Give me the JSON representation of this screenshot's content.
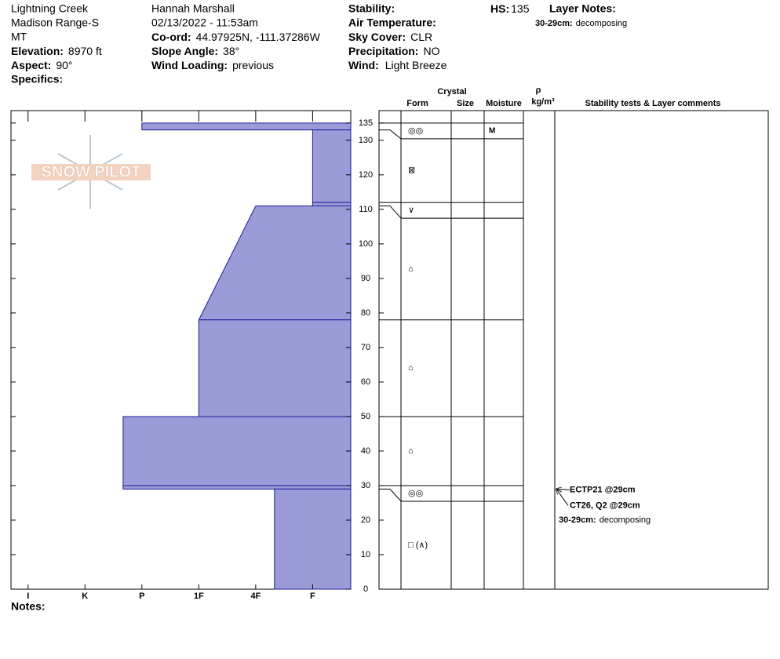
{
  "header": {
    "location": [
      "Lightning Creek",
      "Madison Range-S",
      "MT"
    ],
    "elevation": {
      "label": "Elevation:",
      "value": "8970 ft"
    },
    "aspect": {
      "label": "Aspect:",
      "value": "90°"
    },
    "specifics": {
      "label": "Specifics:"
    },
    "observer": "Hannah Marshall",
    "datetime": "02/13/2022 - 11:53am",
    "coord": {
      "label": "Co-ord:",
      "value": "44.97925N, -111.37286W"
    },
    "slope": {
      "label": "Slope Angle:",
      "value": "38°"
    },
    "wind_loading": {
      "label": "Wind Loading:",
      "value": "previous"
    },
    "stability": {
      "label": "Stability:"
    },
    "air_temp": {
      "label": "Air Temperature:"
    },
    "sky": {
      "label": "Sky Cover:",
      "value": "CLR"
    },
    "precip": {
      "label": "Precipitation:",
      "value": "NO"
    },
    "wind": {
      "label": "Wind:",
      "value": "Light Breeze"
    },
    "hs": {
      "label": "HS:",
      "value": 135
    },
    "layer_notes_label": "Layer Notes:"
  },
  "chart_data": {
    "type": "snow-profile",
    "watermark": "SNOW PILOT",
    "color": "#9b9bd8",
    "edge_color": "#1c1c9c",
    "ylim": [
      0,
      138.6
    ],
    "yticks": [
      0,
      10,
      20,
      30,
      40,
      50,
      60,
      70,
      80,
      90,
      100,
      110,
      120,
      130,
      135
    ],
    "xlim": [
      6.3,
      0.33
    ],
    "xticks": [
      {
        "value": 6,
        "label": "I"
      },
      {
        "value": 5,
        "label": "K"
      },
      {
        "value": 4,
        "label": "P"
      },
      {
        "value": 3,
        "label": "1F"
      },
      {
        "value": 2,
        "label": "4F"
      },
      {
        "value": 1,
        "label": "F"
      }
    ],
    "table_headers": {
      "crystal": "Crystal",
      "form": "Form",
      "size": "Size",
      "moisture": "Moisture",
      "density_symbol": "ρ",
      "density_unit": "kg/m³",
      "comments": "Stability tests & Layer comments"
    },
    "layers": [
      {
        "top": 135,
        "bottom": 133,
        "hardness": 4,
        "form": "◎◎",
        "moisture": "M"
      },
      {
        "top": 133,
        "bottom": 112,
        "hardness": 1,
        "form": "⊠"
      },
      {
        "top": 112,
        "bottom": 111,
        "hardness": 1,
        "form": "∨"
      },
      {
        "top": 111,
        "bottom": 78,
        "hardness": 2,
        "hardness_bottom": 3,
        "form": "⌂"
      },
      {
        "top": 78,
        "bottom": 50,
        "hardness": 3,
        "form": "⌂"
      },
      {
        "top": 50,
        "bottom": 30,
        "hardness": 4.33,
        "form": "⌂"
      },
      {
        "top": 30,
        "bottom": 29,
        "hardness": 4.33,
        "form": "◎◎"
      },
      {
        "top": 29,
        "bottom": 0,
        "hardness": 1.67,
        "form": "□ (∧)"
      }
    ],
    "tests": [
      {
        "label": "ECTP21 @29cm",
        "depth": 29
      },
      {
        "label": "CT26, Q2 @29cm",
        "depth": 29
      }
    ],
    "layer_notes": [
      {
        "range": "30-29cm:",
        "text": "decomposing"
      }
    ],
    "notes_label": "Notes:"
  }
}
